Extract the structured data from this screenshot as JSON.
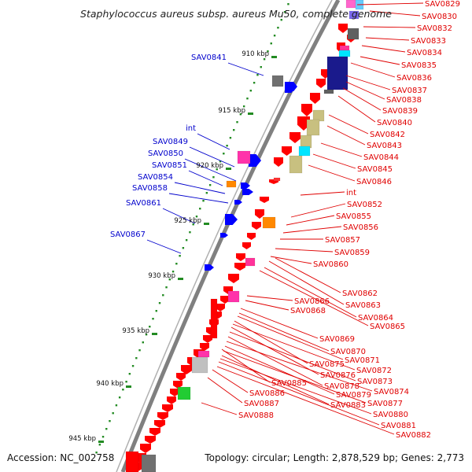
{
  "title": "Staphylococcus aureus subsp. aureus Mu50, complete genome",
  "footer": {
    "accession": "Accession: NC_002758",
    "summary": "Topology: circular; Length: 2,878,529 bp; Genes: 2,773"
  },
  "colors": {
    "forward_gene": "#0000ff",
    "reverse_gene": "#ff0000",
    "forward_label": "#0000cc",
    "reverse_label": "#e00000",
    "backbone": "#808080",
    "ruler_ticks": "#228B22"
  },
  "ruler_labels": [
    "910 kbp",
    "915 kbp",
    "920 kbp",
    "925 kbp",
    "930 kbp",
    "935 kbp",
    "940 kbp",
    "945 kbp"
  ],
  "forward_labels": [
    "SAV0841",
    "int",
    "SAV0849",
    "SAV0850",
    "SAV0851",
    "SAV0854",
    "SAV0858",
    "SAV0861",
    "SAV0867"
  ],
  "reverse_labels": [
    "SAV0829",
    "SAV0830",
    "SAV0832",
    "SAV0833",
    "SAV0834",
    "SAV0835",
    "SAV0836",
    "SAV0837",
    "SAV0838",
    "SAV0839",
    "SAV0840",
    "SAV0842",
    "SAV0843",
    "SAV0844",
    "SAV0845",
    "SAV0846",
    "int",
    "SAV0852",
    "SAV0855",
    "SAV0856",
    "SAV0857",
    "SAV0859",
    "SAV0860",
    "SAV0862",
    "SAV0863",
    "SAV0864",
    "SAV0865",
    "SAV0866",
    "SAV0868",
    "SAV0869",
    "SAV0870",
    "SAV0871",
    "SAV0875",
    "SAV0872",
    "SAV0876",
    "SAV0873",
    "SAV0878",
    "SAV0874",
    "SAV0885",
    "SAV0879",
    "SAV0877",
    "SAV0886",
    "SAV0883",
    "SAV0880",
    "SAV0887",
    "SAV0881",
    "SAV0888",
    "SAV0882"
  ]
}
